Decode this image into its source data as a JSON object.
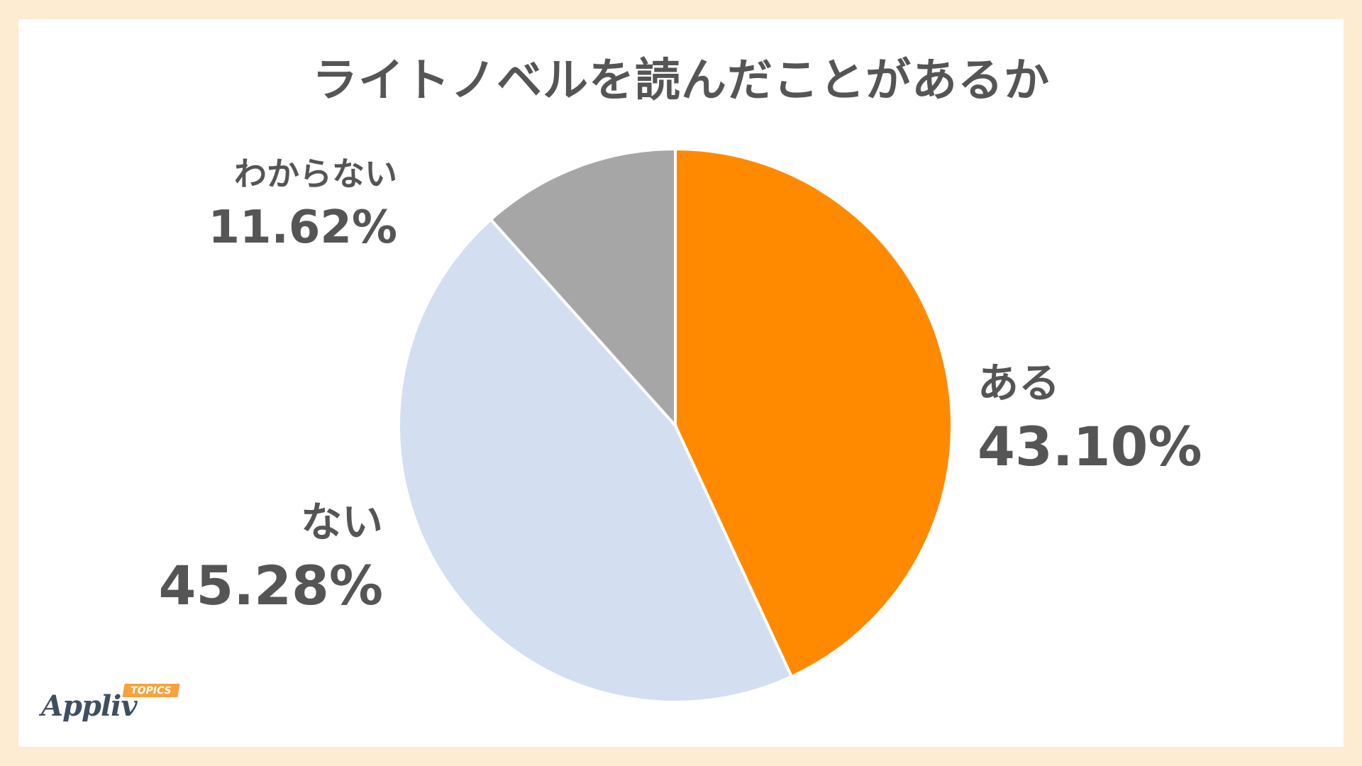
{
  "chart_data": {
    "type": "pie",
    "title": "ライトノベルを読んだことがあるか",
    "start_angle_deg": 0,
    "direction": "clockwise",
    "slices": [
      {
        "label": "ある",
        "value": 43.1,
        "value_label": "43.10%",
        "color": "#ff8a00"
      },
      {
        "label": "ない",
        "value": 45.28,
        "value_label": "45.28%",
        "color": "#d3dff1"
      },
      {
        "label": "わからない",
        "value": 11.62,
        "value_label": "11.62%",
        "color": "#a6a6a6"
      }
    ]
  },
  "logo": {
    "text": "Appliv",
    "badge": "TOPICS"
  },
  "colors": {
    "background": "#fdebd2",
    "panel": "#ffffff",
    "text": "#555555"
  }
}
